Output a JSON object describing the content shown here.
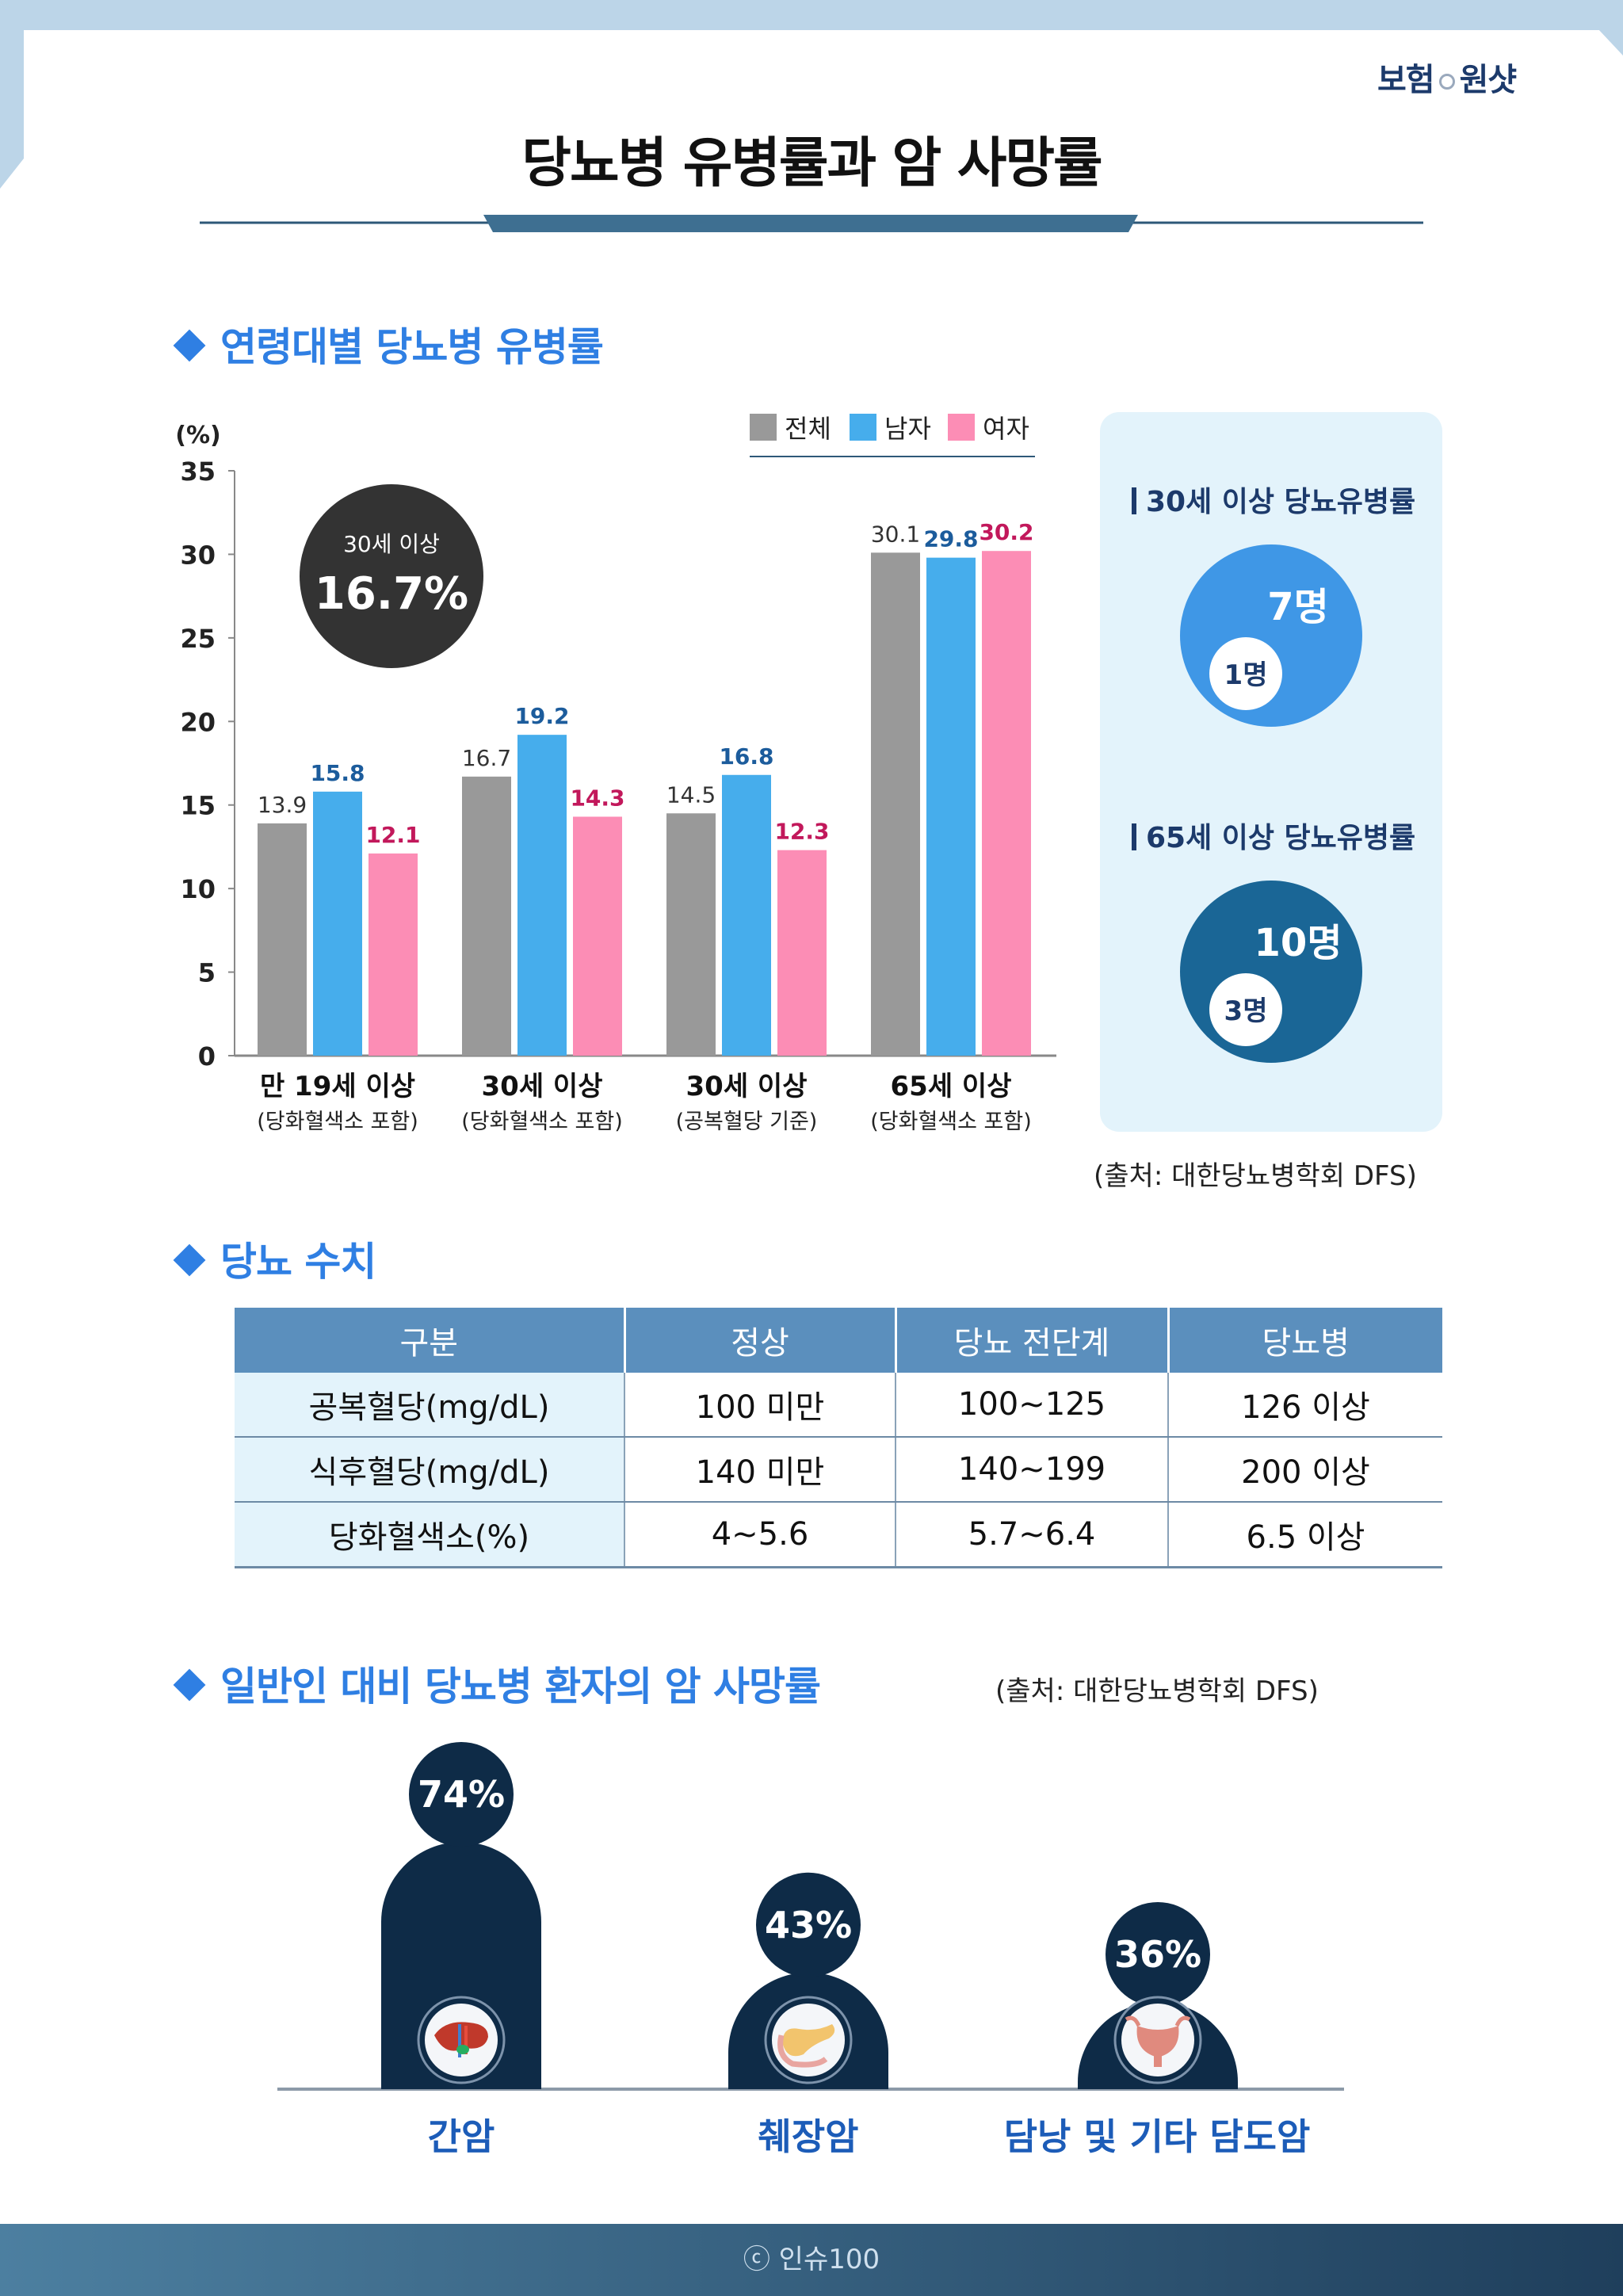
{
  "brand": {
    "left": "보험",
    "right": "원샷"
  },
  "title": "당뇨병 유병률과 암 사망률",
  "section1": {
    "title": "연령대별 당뇨병 유병률"
  },
  "chart_data": [
    {
      "type": "bar",
      "ylabel": "(%)",
      "ylim": [
        0,
        35
      ],
      "yticks": [
        "0",
        "5",
        "10",
        "15",
        "20",
        "25",
        "30",
        "35"
      ],
      "categories": [
        "만 19세 이상",
        "30세 이상",
        "30세 이상",
        "65세 이상"
      ],
      "subcategories": [
        "(당화혈색소 포함)",
        "(당화혈색소 포함)",
        "(공복혈당 기준)",
        "(당화혈색소 포함)"
      ],
      "series": [
        {
          "name": "전체",
          "color": "#999999",
          "label_color": "#333333",
          "values": [
            13.9,
            16.7,
            14.5,
            30.1
          ]
        },
        {
          "name": "남자",
          "color": "#46adec",
          "label_color": "#1c5c9c",
          "values": [
            15.8,
            19.2,
            16.8,
            29.8
          ]
        },
        {
          "name": "여자",
          "color": "#fc8db5",
          "label_color": "#c2185b",
          "values": [
            12.1,
            14.3,
            12.3,
            30.2
          ]
        }
      ],
      "legend": "top-right",
      "annotation": {
        "label": "30세 이상",
        "value": "16.7%"
      }
    },
    {
      "type": "bar",
      "title": "일반인 대비 당뇨병 환자의 암 사망률",
      "categories": [
        "간암",
        "췌장암",
        "담낭 및 기타 담도암"
      ],
      "values": [
        74,
        43,
        36
      ],
      "value_labels": [
        "74%",
        "43%",
        "36%"
      ],
      "icons": [
        "liver-icon",
        "pancreas-icon",
        "gallbladder-icon"
      ]
    }
  ],
  "panel": {
    "p30": {
      "title": "30세 이상 당뇨유병률",
      "big": "7명",
      "small": "1명",
      "color": "#3f97e6"
    },
    "p65": {
      "title": "65세 이상 당뇨유병률",
      "big": "10명",
      "small": "3명",
      "color": "#1a6696"
    }
  },
  "source1": "(출처: 대한당뇨병학회 DFS)",
  "section2": {
    "title": "당뇨 수치",
    "headers": [
      "구분",
      "정상",
      "당뇨 전단계",
      "당뇨병"
    ],
    "rows": [
      [
        "공복혈당(mg/dL)",
        "100 미만",
        "100~125",
        "126 이상"
      ],
      [
        "식후혈당(mg/dL)",
        "140 미만",
        "140~199",
        "200 이상"
      ],
      [
        "당화혈색소(%)",
        "4~5.6",
        "5.7~6.4",
        "6.5 이상"
      ]
    ]
  },
  "section3": {
    "title": "일반인 대비 당뇨병 환자의 암 사망률",
    "source": "(출처: 대한당뇨병학회 DFS)"
  },
  "footer": "ⓒ 인슈100"
}
